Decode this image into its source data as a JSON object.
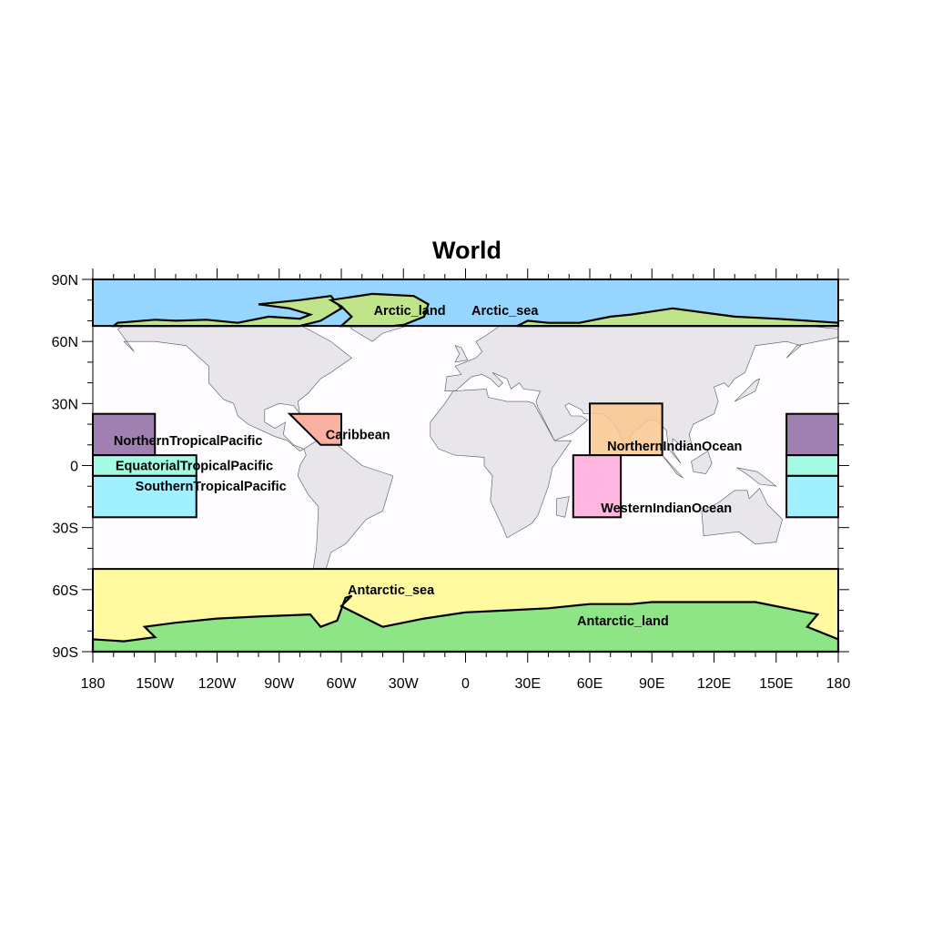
{
  "title": "World",
  "chart_data": {
    "type": "map",
    "projection": "cylindrical-equidistant",
    "lon_range": [
      -180,
      180
    ],
    "lat_range": [
      -90,
      90
    ],
    "x_tick_labels": [
      {
        "lon": -180,
        "label": "180"
      },
      {
        "lon": -150,
        "label": "150W"
      },
      {
        "lon": -120,
        "label": "120W"
      },
      {
        "lon": -90,
        "label": "90W"
      },
      {
        "lon": -60,
        "label": "60W"
      },
      {
        "lon": -30,
        "label": "30W"
      },
      {
        "lon": 0,
        "label": "0"
      },
      {
        "lon": 30,
        "label": "30E"
      },
      {
        "lon": 60,
        "label": "60E"
      },
      {
        "lon": 90,
        "label": "90E"
      },
      {
        "lon": 120,
        "label": "120E"
      },
      {
        "lon": 150,
        "label": "150E"
      },
      {
        "lon": 180,
        "label": "180"
      }
    ],
    "y_tick_labels": [
      {
        "lat": 90,
        "label": "90N"
      },
      {
        "lat": 60,
        "label": "60N"
      },
      {
        "lat": 30,
        "label": "30N"
      },
      {
        "lat": 0,
        "label": "0"
      },
      {
        "lat": -30,
        "label": "30S"
      },
      {
        "lat": -60,
        "label": "60S"
      },
      {
        "lat": -90,
        "label": "90S"
      }
    ],
    "minor_tick_interval_deg": 10,
    "colors": {
      "land": "#e8e6ea",
      "ocean": "#fefcfe",
      "coastline": "#555555",
      "region_outline": "#000000"
    },
    "regions": [
      {
        "name": "Arctic_sea",
        "color": "#96d5fd",
        "boxes": [
          [
            -180,
            180,
            67.5,
            90
          ]
        ]
      },
      {
        "name": "Arctic_land",
        "color": "#bfe48a"
      },
      {
        "name": "NorthernTropicalPacific",
        "color": "#9f80b0",
        "boxes": [
          [
            -180,
            -150,
            5,
            25
          ],
          [
            155,
            180,
            5,
            25
          ]
        ]
      },
      {
        "name": "EquatorialTropicalPacific",
        "color": "#a2fbe2",
        "boxes": [
          [
            -180,
            -130,
            -5,
            5
          ],
          [
            155,
            180,
            -5,
            5
          ]
        ]
      },
      {
        "name": "SouthernTropicalPacific",
        "color": "#a0f0ff",
        "boxes": [
          [
            -180,
            -130,
            -25,
            -5
          ],
          [
            155,
            180,
            -25,
            -5
          ]
        ]
      },
      {
        "name": "Caribbean",
        "color": "#f9a898",
        "polygon": [
          [
            -85,
            25
          ],
          [
            -60,
            25
          ],
          [
            -60,
            10
          ],
          [
            -70,
            10
          ]
        ]
      },
      {
        "name": "NorthernIndianOcean",
        "color": "#f9c890",
        "boxes": [
          [
            60,
            95,
            5,
            30
          ]
        ]
      },
      {
        "name": "WesternIndianOcean",
        "color": "#ffaadd",
        "boxes": [
          [
            52,
            75,
            -25,
            5
          ]
        ]
      },
      {
        "name": "Antarctic_sea",
        "color": "#fffaa0",
        "boxes": [
          [
            -180,
            180,
            -90,
            -50
          ]
        ]
      },
      {
        "name": "Antarctic_land",
        "color": "#8de586"
      }
    ]
  }
}
